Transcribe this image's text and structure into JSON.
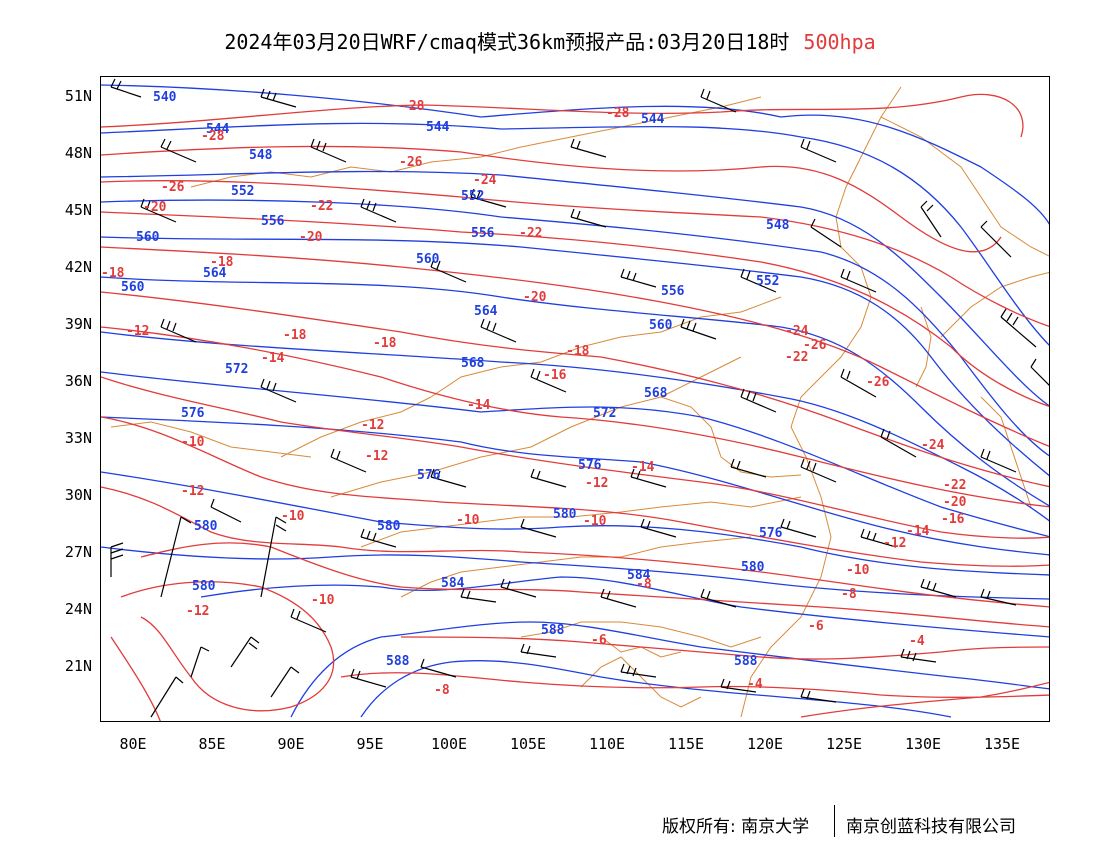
{
  "title": {
    "main": "2024年03月20日WRF/cmaq模式36km预报产品:03月20日18时",
    "level": "500hpa"
  },
  "axes": {
    "lat_labels": [
      "51N",
      "48N",
      "45N",
      "42N",
      "39N",
      "36N",
      "33N",
      "30N",
      "27N",
      "24N",
      "21N"
    ],
    "lon_labels": [
      "80E",
      "85E",
      "90E",
      "95E",
      "100E",
      "105E",
      "110E",
      "115E",
      "120E",
      "125E",
      "130E",
      "135E"
    ]
  },
  "colors": {
    "height_contour": "#1f3fe0",
    "temperature_contour": "#e23b3b",
    "coastline": "#d98a3a",
    "wind_barb": "#000000"
  },
  "height_labels": [
    "540",
    "544",
    "548",
    "552",
    "556",
    "560",
    "564",
    "568",
    "572",
    "576",
    "580",
    "584",
    "588"
  ],
  "temperature_labels": [
    "-28",
    "-26",
    "-24",
    "-22",
    "-20",
    "-18",
    "-16",
    "-14",
    "-12",
    "-10",
    "-8",
    "-6",
    "-4"
  ],
  "footer": {
    "left": "版权所有: 南京大学",
    "right": "南京创蓝科技有限公司"
  }
}
